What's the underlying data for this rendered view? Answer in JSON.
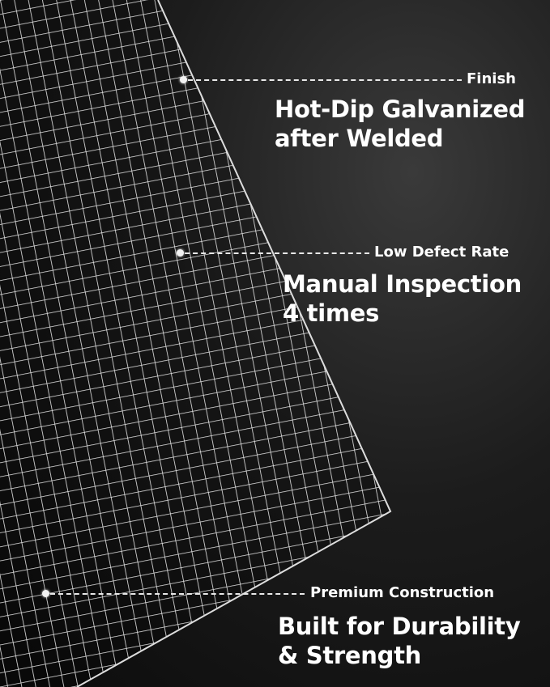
{
  "callouts": [
    {
      "label": "Finish",
      "headline_line1": "Hot-Dip Galvanized",
      "headline_line2": "after Welded"
    },
    {
      "label": "Low Defect Rate",
      "headline_line1": "Manual Inspection",
      "headline_line2": "4 times"
    },
    {
      "label": "Premium Construction",
      "headline_line1": "Built for Durability",
      "headline_line2": "& Strength"
    }
  ],
  "colors": {
    "background": "#1a1a1a",
    "text": "#ffffff",
    "mesh": "#e6e6e6"
  }
}
